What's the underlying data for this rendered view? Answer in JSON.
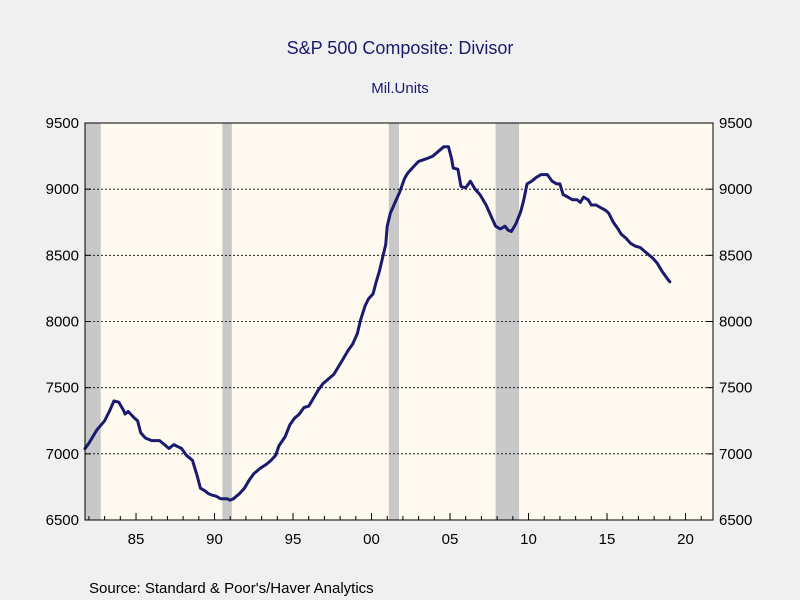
{
  "chart_data": {
    "type": "line",
    "title": "S&P 500 Composite: Divisor",
    "subtitle": "Mil.Units",
    "source": "Source:  Standard & Poor's/Haver Analytics",
    "xlim": [
      1981.75,
      2021.75
    ],
    "ylim": [
      6500,
      9500
    ],
    "yticks": [
      6500,
      7000,
      7500,
      8000,
      8500,
      9000,
      9500
    ],
    "ytick_labels": [
      "6500",
      "7000",
      "7500",
      "8000",
      "8500",
      "9000",
      "9500"
    ],
    "xticks": [
      1985,
      1990,
      1995,
      2000,
      2005,
      2010,
      2015,
      2020
    ],
    "xtick_labels": [
      "85",
      "90",
      "95",
      "00",
      "05",
      "10",
      "15",
      "20"
    ],
    "grid": "horizontal dotted",
    "colors": {
      "line": "#1a1a6e",
      "plot_bg": "#fffaf0",
      "recession": "#c8c8c8",
      "text": "#1a1a6e"
    },
    "recessions": [
      {
        "start": 1981.75,
        "end": 1982.75
      },
      {
        "start": 1990.5,
        "end": 1991.1
      },
      {
        "start": 2001.1,
        "end": 2001.75
      },
      {
        "start": 2007.9,
        "end": 2009.4
      }
    ],
    "series": [
      {
        "values": [
          [
            1981.75,
            7040
          ],
          [
            1982.0,
            7080
          ],
          [
            1982.5,
            7180
          ],
          [
            1983.0,
            7250
          ],
          [
            1983.3,
            7320
          ],
          [
            1983.6,
            7400
          ],
          [
            1983.9,
            7390
          ],
          [
            1984.2,
            7330
          ],
          [
            1984.3,
            7300
          ],
          [
            1984.5,
            7320
          ],
          [
            1984.9,
            7270
          ],
          [
            1985.1,
            7250
          ],
          [
            1985.3,
            7160
          ],
          [
            1985.6,
            7120
          ],
          [
            1986.0,
            7100
          ],
          [
            1986.5,
            7100
          ],
          [
            1986.9,
            7060
          ],
          [
            1987.1,
            7040
          ],
          [
            1987.4,
            7070
          ],
          [
            1987.9,
            7040
          ],
          [
            1988.2,
            6990
          ],
          [
            1988.6,
            6950
          ],
          [
            1988.9,
            6830
          ],
          [
            1989.1,
            6740
          ],
          [
            1989.4,
            6720
          ],
          [
            1989.6,
            6700
          ],
          [
            1989.8,
            6690
          ],
          [
            1990.1,
            6680
          ],
          [
            1990.4,
            6660
          ],
          [
            1990.8,
            6660
          ],
          [
            1991.0,
            6650
          ],
          [
            1991.2,
            6660
          ],
          [
            1991.6,
            6700
          ],
          [
            1991.9,
            6740
          ],
          [
            1992.2,
            6800
          ],
          [
            1992.5,
            6850
          ],
          [
            1992.9,
            6890
          ],
          [
            1993.3,
            6920
          ],
          [
            1993.6,
            6950
          ],
          [
            1993.9,
            6990
          ],
          [
            1994.1,
            7060
          ],
          [
            1994.5,
            7130
          ],
          [
            1994.8,
            7220
          ],
          [
            1995.1,
            7270
          ],
          [
            1995.4,
            7300
          ],
          [
            1995.7,
            7350
          ],
          [
            1996.0,
            7360
          ],
          [
            1996.2,
            7400
          ],
          [
            1996.6,
            7480
          ],
          [
            1996.9,
            7530
          ],
          [
            1997.3,
            7570
          ],
          [
            1997.6,
            7600
          ],
          [
            1997.9,
            7660
          ],
          [
            1998.2,
            7720
          ],
          [
            1998.5,
            7780
          ],
          [
            1998.8,
            7830
          ],
          [
            1999.1,
            7910
          ],
          [
            1999.3,
            8010
          ],
          [
            1999.6,
            8120
          ],
          [
            1999.8,
            8170
          ],
          [
            2000.1,
            8210
          ],
          [
            2000.3,
            8300
          ],
          [
            2000.5,
            8380
          ],
          [
            2000.7,
            8480
          ],
          [
            2000.9,
            8580
          ],
          [
            2001.0,
            8720
          ],
          [
            2001.2,
            8820
          ],
          [
            2001.5,
            8900
          ],
          [
            2001.8,
            8980
          ],
          [
            2002.1,
            9080
          ],
          [
            2002.3,
            9120
          ],
          [
            2002.6,
            9160
          ],
          [
            2003.0,
            9210
          ],
          [
            2003.5,
            9230
          ],
          [
            2003.9,
            9250
          ],
          [
            2004.3,
            9290
          ],
          [
            2004.6,
            9320
          ],
          [
            2004.9,
            9320
          ],
          [
            2005.1,
            9230
          ],
          [
            2005.2,
            9160
          ],
          [
            2005.5,
            9150
          ],
          [
            2005.7,
            9020
          ],
          [
            2006.0,
            9010
          ],
          [
            2006.3,
            9060
          ],
          [
            2006.6,
            9000
          ],
          [
            2006.9,
            8960
          ],
          [
            2007.3,
            8880
          ],
          [
            2007.6,
            8800
          ],
          [
            2007.9,
            8720
          ],
          [
            2008.2,
            8700
          ],
          [
            2008.5,
            8720
          ],
          [
            2008.7,
            8690
          ],
          [
            2008.9,
            8680
          ],
          [
            2009.2,
            8740
          ],
          [
            2009.5,
            8830
          ],
          [
            2009.7,
            8920
          ],
          [
            2009.9,
            9040
          ],
          [
            2010.2,
            9060
          ],
          [
            2010.5,
            9090
          ],
          [
            2010.8,
            9110
          ],
          [
            2011.2,
            9110
          ],
          [
            2011.5,
            9060
          ],
          [
            2011.8,
            9040
          ],
          [
            2012.0,
            9040
          ],
          [
            2012.2,
            8960
          ],
          [
            2012.5,
            8940
          ],
          [
            2012.8,
            8920
          ],
          [
            2013.1,
            8920
          ],
          [
            2013.3,
            8900
          ],
          [
            2013.5,
            8940
          ],
          [
            2013.8,
            8920
          ],
          [
            2014.0,
            8880
          ],
          [
            2014.3,
            8880
          ],
          [
            2014.6,
            8860
          ],
          [
            2014.9,
            8840
          ],
          [
            2015.1,
            8820
          ],
          [
            2015.4,
            8750
          ],
          [
            2015.7,
            8700
          ],
          [
            2015.9,
            8660
          ],
          [
            2016.2,
            8630
          ],
          [
            2016.5,
            8590
          ],
          [
            2016.8,
            8570
          ],
          [
            2017.1,
            8560
          ],
          [
            2017.3,
            8540
          ],
          [
            2017.6,
            8510
          ],
          [
            2017.9,
            8480
          ],
          [
            2018.2,
            8440
          ],
          [
            2018.5,
            8380
          ],
          [
            2018.8,
            8330
          ],
          [
            2019.0,
            8300
          ]
        ]
      }
    ]
  }
}
